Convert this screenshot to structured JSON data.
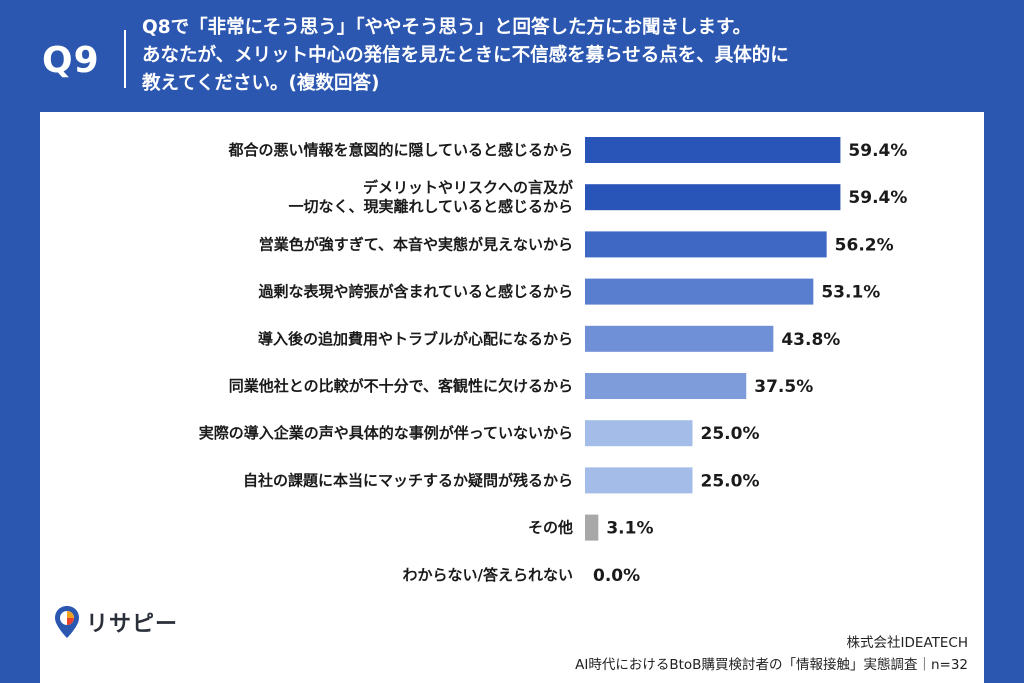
{
  "header": {
    "question_number": "Q9",
    "question_lines": [
      "Q8で「非常にそう思う」「ややそう思う」と回答した方にお聞きします。",
      "あなたが、メリット中心の発信を見たときに不信感を募らせる点を、具体的に",
      "教えてください。(複数回答)"
    ]
  },
  "chart_data": {
    "type": "bar",
    "orientation": "horizontal",
    "categories": [
      [
        "都合の悪い情報を意図的に隠していると感じるから"
      ],
      [
        "デメリットやリスクへの言及が",
        "一切なく、現実離れしていると感じるから"
      ],
      [
        "営業色が強すぎて、本音や実態が見えないから"
      ],
      [
        "過剰な表現や誇張が含まれていると感じるから"
      ],
      [
        "導入後の追加費用やトラブルが心配になるから"
      ],
      [
        "同業他社との比較が不十分で、客観性に欠けるから"
      ],
      [
        "実際の導入企業の声や具体的な事例が伴っていないから"
      ],
      [
        "自社の課題に本当にマッチするか疑問が残るから"
      ],
      [
        "その他"
      ],
      [
        "わからない/答えられない"
      ]
    ],
    "values": [
      59.4,
      59.4,
      56.2,
      53.1,
      43.8,
      37.5,
      25.0,
      25.0,
      3.1,
      0.0
    ],
    "value_labels": [
      "59.4%",
      "59.4%",
      "56.2%",
      "53.1%",
      "43.8%",
      "37.5%",
      "25.0%",
      "25.0%",
      "3.1%",
      "0.0%"
    ],
    "bar_colors": [
      "#2a55b8",
      "#2a55b8",
      "#3f67c4",
      "#5a7ecf",
      "#6f8fd6",
      "#7e9bda",
      "#a4bde8",
      "#a4bde8",
      "#a8a8a8",
      "#a8a8a8"
    ],
    "xlim": [
      0,
      100
    ]
  },
  "logo": {
    "text": "リサピー",
    "icon": "map-pin-icon"
  },
  "footer": {
    "company": "株式会社IDEATECH",
    "source": "AI時代におけるBtoB購買検討者の「情報接触」実態調査｜n=32"
  }
}
